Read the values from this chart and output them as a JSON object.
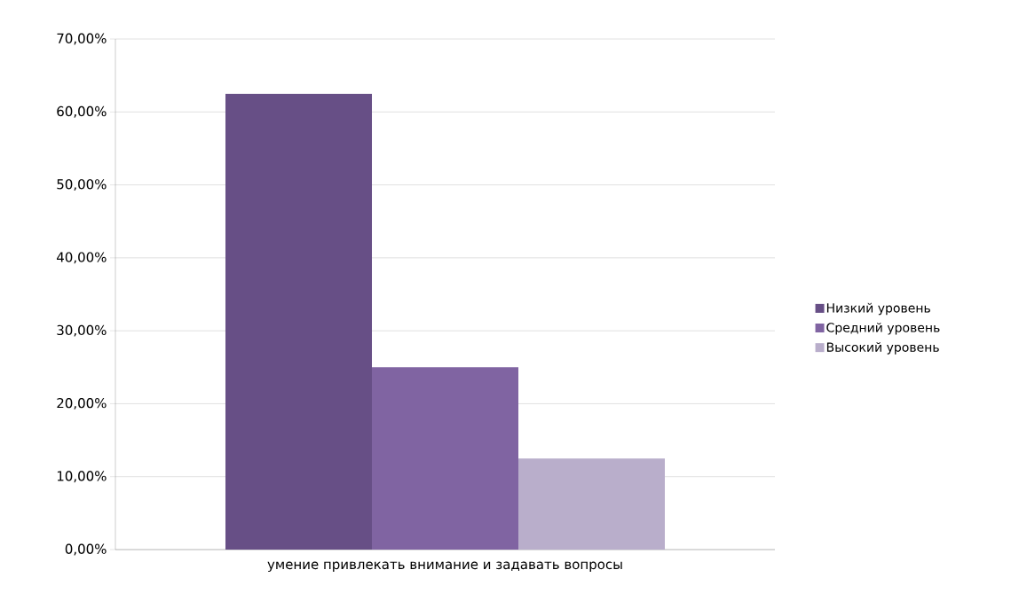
{
  "chart_data": {
    "type": "bar",
    "categories": [
      "умение привлекать внимание и задавать вопросы"
    ],
    "series": [
      {
        "name": "Низкий уровень",
        "color": "#674f86",
        "values": [
          62.5
        ]
      },
      {
        "name": "Средний уровень",
        "color": "#8064a2",
        "values": [
          25
        ]
      },
      {
        "name": "Высокий уровень",
        "color": "#b9aecb",
        "values": [
          12.5
        ]
      }
    ],
    "ylim": [
      0,
      70
    ],
    "yticks": [
      {
        "value": 0,
        "label": "0,00%"
      },
      {
        "value": 10,
        "label": "10,00%"
      },
      {
        "value": 20,
        "label": "20,00%"
      },
      {
        "value": 30,
        "label": "30,00%"
      },
      {
        "value": 40,
        "label": "40,00%"
      },
      {
        "value": 50,
        "label": "50,00%"
      },
      {
        "value": 60,
        "label": "60,00%"
      },
      {
        "value": 70,
        "label": "70,00%"
      }
    ],
    "grid": "y",
    "legend": "right"
  }
}
